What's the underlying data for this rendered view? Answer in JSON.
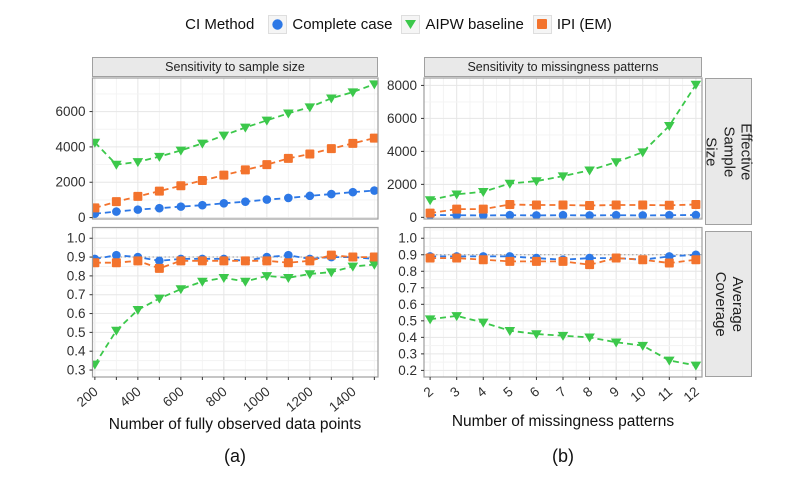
{
  "legend": {
    "title": "CI Method",
    "items": [
      {
        "label": "Complete case",
        "marker": "circle",
        "color": "#2d78e6"
      },
      {
        "label": "AIPW baseline",
        "marker": "triangle-down",
        "color": "#3cc84b"
      },
      {
        "label": "IPI (EM)",
        "marker": "square",
        "color": "#f3732d"
      }
    ]
  },
  "strips": {
    "col": [
      "Sensitivity to sample size",
      "Sensitivity to missingness patterns"
    ],
    "row": [
      "Effective\nSample Size",
      "Average\nCoverage"
    ]
  },
  "axis_titles": {
    "left": "Number of fully observed data points",
    "right": "Number of missingness patterns"
  },
  "captions": {
    "a": "(a)",
    "b": "(b)"
  },
  "style": {
    "grid_major": "#e6e6e6",
    "grid_minor": "#f3f3f3",
    "panel_border": "#9e9e9e",
    "tick_color": "#333333",
    "tick_label_color": "#2f2f2f",
    "ref_line_color": "#999999"
  },
  "chart_data": [
    {
      "id": "ess-vs-sample-size",
      "type": "line",
      "facet_col": "Sensitivity to sample size",
      "facet_row": "Effective Sample Size",
      "x": [
        200,
        300,
        400,
        500,
        600,
        700,
        800,
        900,
        1000,
        1100,
        1200,
        1300,
        1400,
        1500
      ],
      "series": [
        {
          "name": "Complete case",
          "values": [
            220,
            340,
            450,
            530,
            620,
            700,
            810,
            900,
            1020,
            1110,
            1230,
            1330,
            1440,
            1530
          ]
        },
        {
          "name": "AIPW baseline",
          "values": [
            4250,
            3000,
            3150,
            3450,
            3800,
            4200,
            4650,
            5100,
            5500,
            5900,
            6250,
            6750,
            7100,
            7550
          ]
        },
        {
          "name": "IPI (EM)",
          "values": [
            550,
            900,
            1200,
            1500,
            1800,
            2100,
            2400,
            2700,
            3000,
            3350,
            3600,
            3900,
            4200,
            4500
          ]
        }
      ],
      "xlim": [
        189,
        1517
      ],
      "ylim": [
        -80,
        7900
      ],
      "yticks": [
        0,
        2000,
        4000,
        6000
      ],
      "ytick_labels": [
        "0",
        "2000",
        "4000",
        "6000"
      ],
      "xticks": [
        200,
        400,
        600,
        800,
        1000,
        1200,
        1400
      ],
      "xtick_labels": [
        "200",
        "400",
        "600",
        "800",
        "1000",
        "1200",
        "1400"
      ],
      "xtick_marks": [
        200,
        300,
        400,
        500,
        600,
        700,
        800,
        900,
        1000,
        1100,
        1200,
        1300,
        1400,
        1500
      ],
      "x_minor_step": 100,
      "y_minor_step": 1000,
      "y_major_every": 2000,
      "show_x_axis": false
    },
    {
      "id": "ess-vs-missingness-patterns",
      "type": "line",
      "facet_col": "Sensitivity to missingness patterns",
      "facet_row": "Effective Sample Size",
      "x": [
        2,
        3,
        4,
        5,
        6,
        7,
        8,
        9,
        10,
        11,
        12
      ],
      "series": [
        {
          "name": "Complete case",
          "values": [
            140,
            130,
            120,
            130,
            120,
            130,
            120,
            130,
            120,
            130,
            140
          ]
        },
        {
          "name": "AIPW baseline",
          "values": [
            1050,
            1400,
            1550,
            2050,
            2200,
            2500,
            2850,
            3350,
            3950,
            5550,
            8050
          ]
        },
        {
          "name": "IPI (EM)",
          "values": [
            260,
            500,
            500,
            780,
            750,
            750,
            720,
            750,
            750,
            730,
            780
          ]
        }
      ],
      "xlim": [
        1.77,
        12.23
      ],
      "ylim": [
        -100,
        8450
      ],
      "yticks": [
        0,
        2000,
        4000,
        6000,
        8000
      ],
      "ytick_labels": [
        "0",
        "2000",
        "4000",
        "6000",
        "8000"
      ],
      "xticks": [
        2,
        3,
        4,
        5,
        6,
        7,
        8,
        9,
        10,
        11,
        12
      ],
      "xtick_labels": [
        "2",
        "3",
        "4",
        "5",
        "6",
        "7",
        "8",
        "9",
        "10",
        "11",
        "12"
      ],
      "xtick_marks": [
        2,
        3,
        4,
        5,
        6,
        7,
        8,
        9,
        10,
        11,
        12
      ],
      "x_minor_step": 0.5,
      "y_minor_step": 1000,
      "y_major_every": 2000,
      "show_x_axis": false
    },
    {
      "id": "coverage-vs-sample-size",
      "type": "line",
      "facet_col": "Sensitivity to sample size",
      "facet_row": "Average Coverage",
      "x": [
        200,
        300,
        400,
        500,
        600,
        700,
        800,
        900,
        1000,
        1100,
        1200,
        1300,
        1400,
        1500
      ],
      "series": [
        {
          "name": "Complete case",
          "values": [
            0.89,
            0.91,
            0.9,
            0.88,
            0.89,
            0.89,
            0.89,
            0.88,
            0.9,
            0.91,
            0.89,
            0.9,
            0.9,
            0.89
          ]
        },
        {
          "name": "AIPW baseline",
          "values": [
            0.33,
            0.51,
            0.62,
            0.68,
            0.73,
            0.77,
            0.79,
            0.77,
            0.8,
            0.79,
            0.81,
            0.82,
            0.85,
            0.86
          ]
        },
        {
          "name": "IPI (EM)",
          "values": [
            0.87,
            0.87,
            0.88,
            0.84,
            0.88,
            0.88,
            0.88,
            0.88,
            0.88,
            0.87,
            0.88,
            0.91,
            0.9,
            0.9
          ]
        }
      ],
      "xlim": [
        189,
        1517
      ],
      "ylim": [
        0.263,
        1.057
      ],
      "yticks": [
        0.3,
        0.4,
        0.5,
        0.6,
        0.7,
        0.8,
        0.9,
        1.0
      ],
      "ytick_labels": [
        "0.3",
        "0.4",
        "0.5",
        "0.6",
        "0.7",
        "0.8",
        "0.9",
        "1.0"
      ],
      "xticks": [
        200,
        400,
        600,
        800,
        1000,
        1200,
        1400
      ],
      "xtick_labels": [
        "200",
        "400",
        "600",
        "800",
        "1000",
        "1200",
        "1400"
      ],
      "xtick_marks": [
        200,
        300,
        400,
        500,
        600,
        700,
        800,
        900,
        1000,
        1100,
        1200,
        1300,
        1400,
        1500
      ],
      "x_minor_step": 100,
      "y_minor_step": 0.05,
      "y_major_every": 0.1,
      "ref_line": 0.9,
      "show_x_axis": true
    },
    {
      "id": "coverage-vs-missingness-patterns",
      "type": "line",
      "facet_col": "Sensitivity to missingness patterns",
      "facet_row": "Average Coverage",
      "x": [
        2,
        3,
        4,
        5,
        6,
        7,
        8,
        9,
        10,
        11,
        12
      ],
      "series": [
        {
          "name": "Complete case",
          "values": [
            0.89,
            0.89,
            0.89,
            0.89,
            0.88,
            0.87,
            0.88,
            0.88,
            0.87,
            0.89,
            0.9
          ]
        },
        {
          "name": "AIPW baseline",
          "values": [
            0.51,
            0.53,
            0.49,
            0.44,
            0.42,
            0.41,
            0.4,
            0.37,
            0.35,
            0.26,
            0.23
          ]
        },
        {
          "name": "IPI (EM)",
          "values": [
            0.88,
            0.88,
            0.87,
            0.86,
            0.86,
            0.86,
            0.84,
            0.88,
            0.87,
            0.85,
            0.87
          ]
        }
      ],
      "xlim": [
        1.77,
        12.23
      ],
      "ylim": [
        0.16,
        1.065
      ],
      "yticks": [
        0.2,
        0.3,
        0.4,
        0.5,
        0.6,
        0.7,
        0.8,
        0.9,
        1.0
      ],
      "ytick_labels": [
        "0.2",
        "0.3",
        "0.4",
        "0.5",
        "0.6",
        "0.7",
        "0.8",
        "0.9",
        "1.0"
      ],
      "xticks": [
        2,
        3,
        4,
        5,
        6,
        7,
        8,
        9,
        10,
        11,
        12
      ],
      "xtick_labels": [
        "2",
        "3",
        "4",
        "5",
        "6",
        "7",
        "8",
        "9",
        "10",
        "11",
        "12"
      ],
      "xtick_marks": [
        2,
        3,
        4,
        5,
        6,
        7,
        8,
        9,
        10,
        11,
        12
      ],
      "x_minor_step": 0.5,
      "y_minor_step": 0.05,
      "y_major_every": 0.1,
      "ref_line": 0.9,
      "show_x_axis": true
    }
  ]
}
